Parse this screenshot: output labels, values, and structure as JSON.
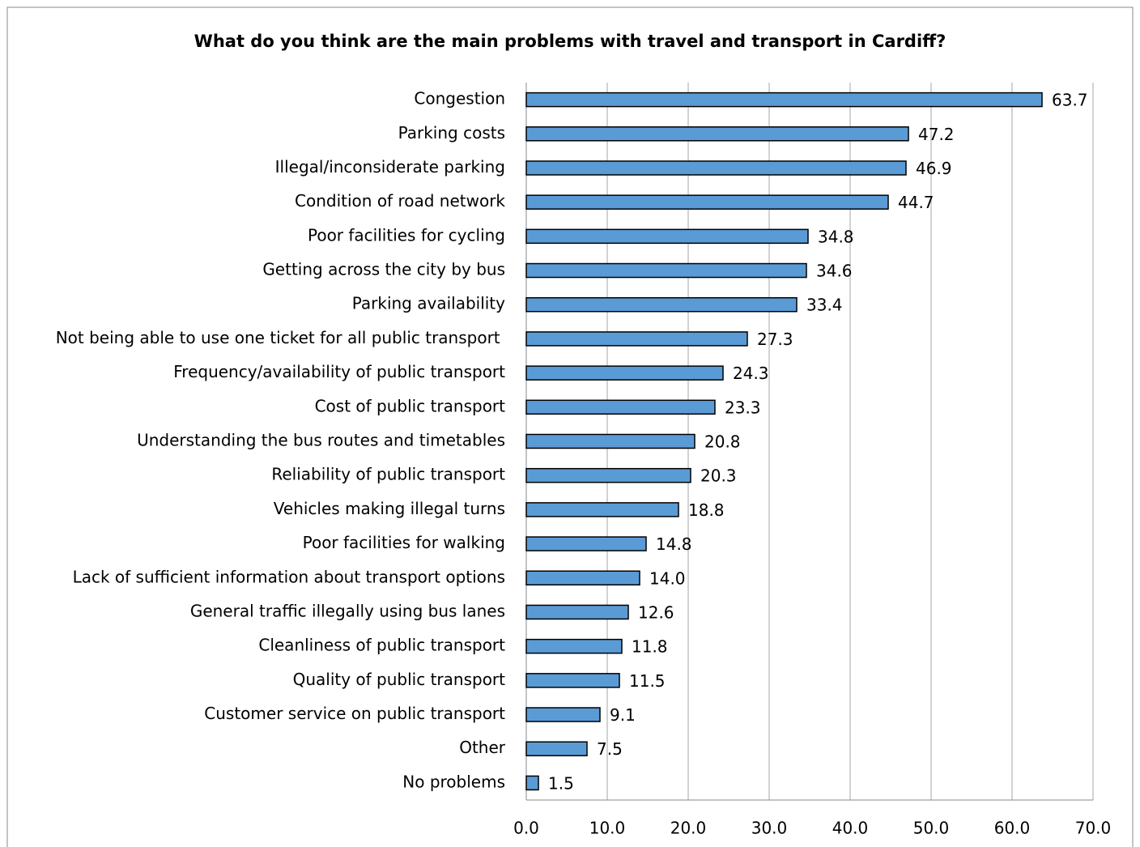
{
  "chart_data": {
    "type": "bar",
    "orientation": "horizontal",
    "title": "What do you think are the main problems with travel and transport in Cardiff?",
    "categories": [
      "Congestion",
      "Parking costs",
      "Illegal/inconsiderate parking",
      "Condition of road network",
      "Poor facilities for cycling",
      "Getting across the city by bus",
      "Parking availability",
      "Not being able to use one ticket for all public transport ",
      "Frequency/availability of public transport",
      "Cost of public transport",
      "Understanding the bus routes and timetables",
      "Reliability of public transport",
      "Vehicles making illegal turns",
      "Poor facilities for walking",
      "Lack of sufficient information about transport options",
      "General traffic illegally using bus lanes",
      "Cleanliness of public transport",
      "Quality of public transport",
      "Customer service on public transport",
      "Other",
      "No problems"
    ],
    "values": [
      63.7,
      47.2,
      46.9,
      44.7,
      34.8,
      34.6,
      33.4,
      27.3,
      24.3,
      23.3,
      20.8,
      20.3,
      18.8,
      14.8,
      14,
      12.6,
      11.8,
      11.5,
      9.1,
      7.5,
      1.5
    ],
    "value_labels": [
      "63.7",
      "47.2",
      "46.9",
      "44.7",
      "34.8",
      "34.6",
      "33.4",
      "27.3",
      "24.3",
      "23.3",
      "20.8",
      "20.3",
      "18.8",
      "14.8",
      "14.0",
      "12.6",
      "11.8",
      "11.5",
      "9.1",
      "7.5",
      "1.5"
    ],
    "color": "#5b9bd5",
    "xlim": [
      0,
      70
    ],
    "xticks": [
      {
        "value": 0,
        "label": "0.0"
      },
      {
        "value": 10,
        "label": "10.0"
      },
      {
        "value": 20,
        "label": "20.0"
      },
      {
        "value": 30,
        "label": "30.0"
      },
      {
        "value": 40,
        "label": "40.0"
      },
      {
        "value": 50,
        "label": "50.0"
      },
      {
        "value": 60,
        "label": "60.0"
      },
      {
        "value": 70,
        "label": "70.0"
      }
    ],
    "grid": true
  }
}
